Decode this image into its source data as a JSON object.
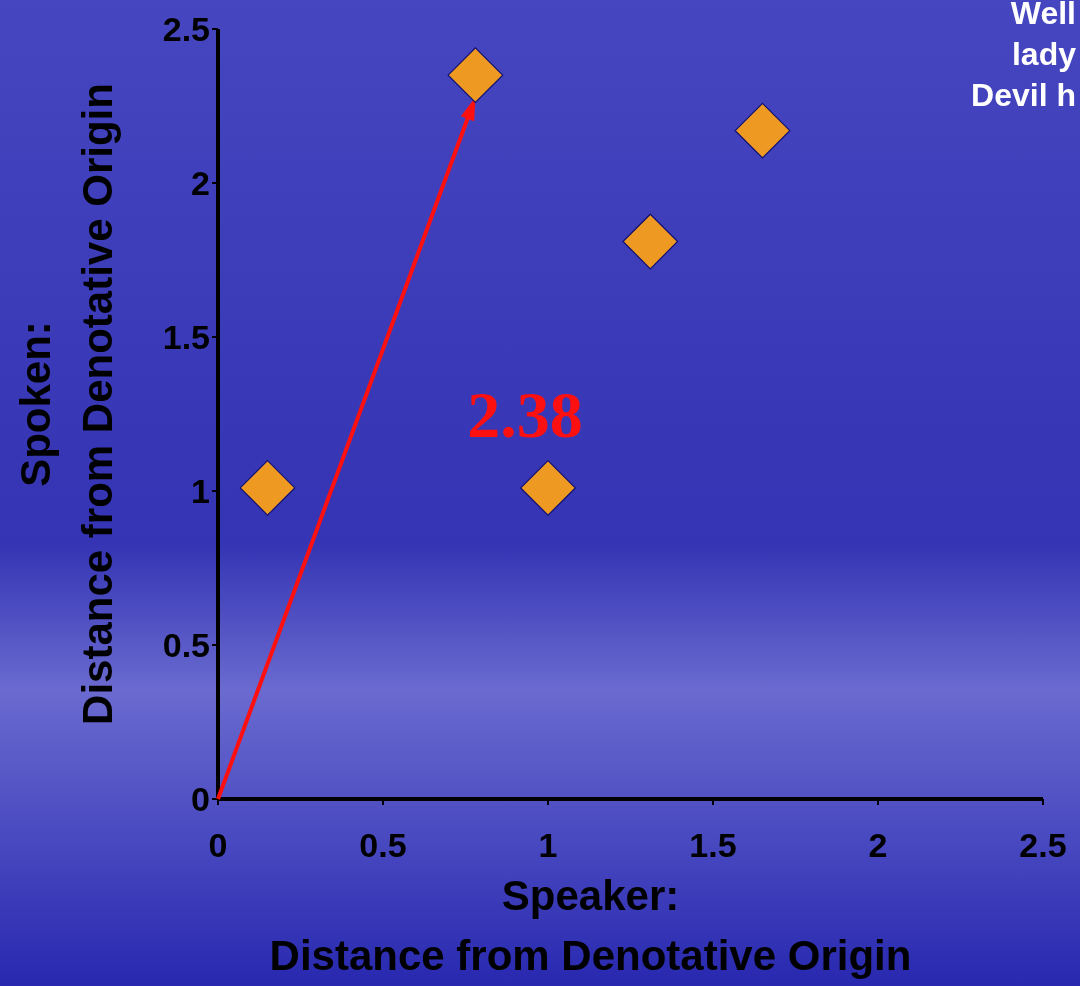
{
  "chart_data": {
    "type": "scatter",
    "xlabel": "Speaker:\nDistance from Denotative Origin",
    "ylabel": "Spoken:\nDistance from Denotative Origin",
    "x": [
      0.15,
      0.78,
      1.65,
      1.31,
      1.0
    ],
    "values": [
      1.01,
      2.35,
      2.17,
      1.81,
      1.01
    ],
    "color": "#ee9922",
    "marker": "diamond",
    "xlim": [
      0,
      2.5
    ],
    "ylim": [
      0,
      2.5
    ],
    "xticks": [
      0,
      0.5,
      1,
      1.5,
      2,
      2.5
    ],
    "yticks": [
      0,
      0.5,
      1,
      1.5,
      2,
      2.5
    ],
    "annotations": [
      "2.38",
      "Well",
      "lady",
      "Devil h"
    ]
  }
}
